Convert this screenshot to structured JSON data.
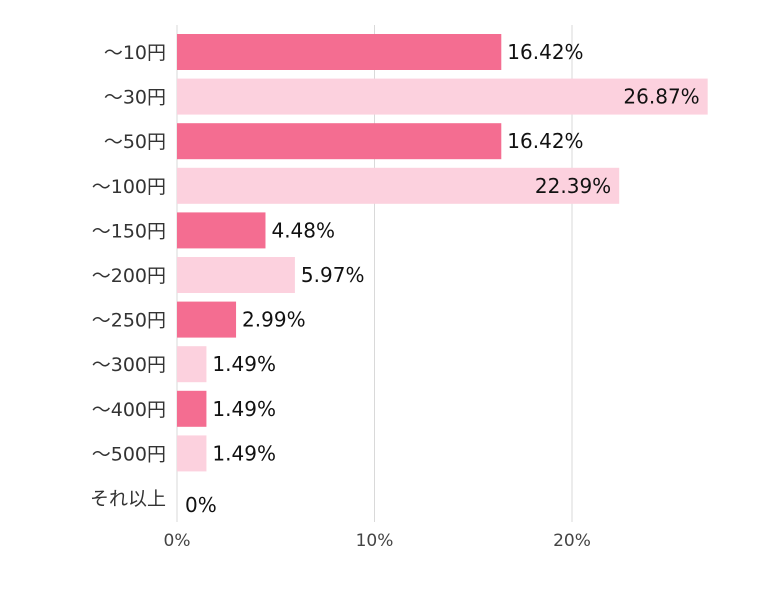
{
  "chart_data": {
    "type": "bar",
    "orientation": "horizontal",
    "categories": [
      "～10円",
      "～30円",
      "～50円",
      "～100円",
      "～150円",
      "～200円",
      "～250円",
      "～300円",
      "～400円",
      "～500円",
      "それ以上"
    ],
    "values": [
      16.42,
      26.87,
      16.42,
      22.39,
      4.48,
      5.97,
      2.99,
      1.49,
      1.49,
      1.49,
      0
    ],
    "value_labels": [
      "16.42%",
      "26.87%",
      "16.42%",
      "22.39%",
      "4.48%",
      "5.97%",
      "2.99%",
      "1.49%",
      "1.49%",
      "1.49%",
      "0%"
    ],
    "xlim": [
      0,
      27
    ],
    "xticks": [
      0,
      10,
      20
    ],
    "xtick_labels": [
      "0%",
      "10%",
      "20%"
    ],
    "grid": true,
    "colors": [
      "#f46d91",
      "#fcd1de"
    ]
  }
}
